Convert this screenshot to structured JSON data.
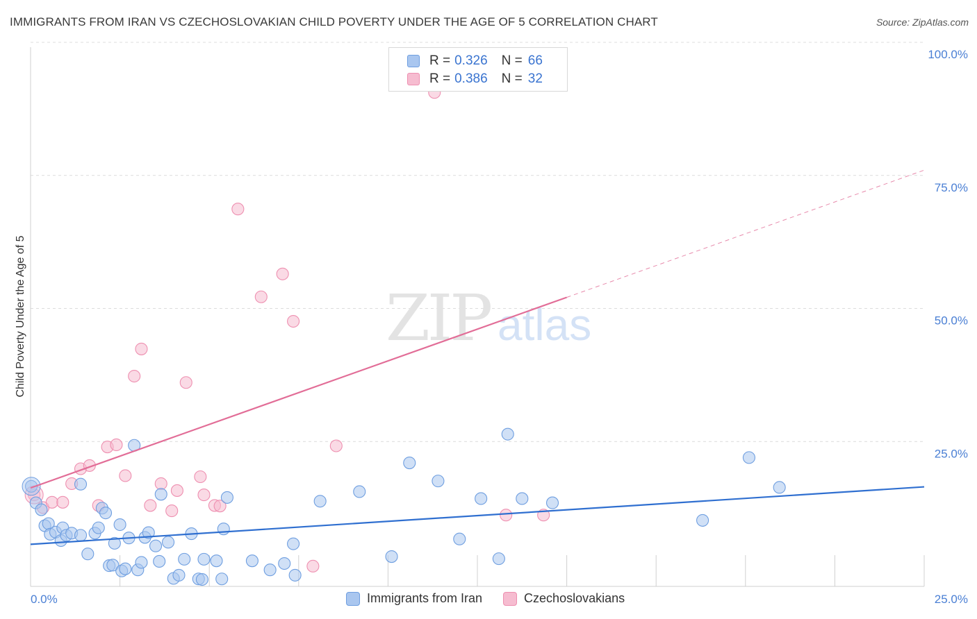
{
  "header": {
    "title": "IMMIGRANTS FROM IRAN VS CZECHOSLOVAKIAN CHILD POVERTY UNDER THE AGE OF 5 CORRELATION CHART",
    "source": "Source: ZipAtlas.com"
  },
  "legend": {
    "rows": [
      {
        "r_label": "R =",
        "r_value": "0.326",
        "n_label": "N =",
        "n_value": "66"
      },
      {
        "r_label": "R =",
        "r_value": "0.386",
        "n_label": "N =",
        "n_value": "32"
      }
    ]
  },
  "bottom_legend": {
    "items": [
      "Immigrants from Iran",
      "Czechoslovakians"
    ]
  },
  "colors": {
    "blue_fill": "#a9c6ef",
    "blue_stroke": "#6e9ee0",
    "blue_line": "#2f6fd0",
    "pink_fill": "#f6bcd0",
    "pink_stroke": "#ee8fb0",
    "pink_line": "#e26d97",
    "grid": "#dcdcdc",
    "tick_text": "#4a7fd4"
  },
  "chart_data": {
    "type": "scatter",
    "title": "IMMIGRANTS FROM IRAN VS CZECHOSLOVAKIAN CHILD POVERTY UNDER THE AGE OF 5 CORRELATION CHART",
    "xlabel": "",
    "ylabel": "Child Poverty Under the Age of 5",
    "xlim": [
      0,
      25
    ],
    "ylim": [
      0,
      100
    ],
    "x_ticks": [
      "0.0%",
      "25.0%"
    ],
    "y_ticks": [
      "25.0%",
      "50.0%",
      "75.0%",
      "100.0%"
    ],
    "y_tick_values": [
      25,
      50,
      75,
      100
    ],
    "grid": true,
    "legend_placement": "top-center",
    "watermark": "ZIPatlas",
    "series": [
      {
        "name": "Immigrants from Iran",
        "R": 0.326,
        "N": 66,
        "trend": {
          "x": [
            0,
            25
          ],
          "y": [
            7.9,
            18.7
          ]
        },
        "points": [
          [
            0.02,
            18.8
          ],
          [
            0.15,
            15.7
          ],
          [
            0.3,
            14.4
          ],
          [
            0.4,
            11.4
          ],
          [
            0.5,
            11.8
          ],
          [
            0.55,
            9.8
          ],
          [
            0.7,
            10.2
          ],
          [
            0.85,
            8.6
          ],
          [
            0.9,
            11.0
          ],
          [
            1.0,
            9.6
          ],
          [
            1.15,
            10.0
          ],
          [
            1.4,
            9.6
          ],
          [
            1.4,
            19.2
          ],
          [
            1.6,
            6.1
          ],
          [
            1.8,
            10.0
          ],
          [
            1.9,
            11.0
          ],
          [
            2.0,
            14.7
          ],
          [
            2.1,
            13.8
          ],
          [
            2.2,
            3.9
          ],
          [
            2.3,
            4.0
          ],
          [
            2.35,
            8.1
          ],
          [
            2.5,
            11.6
          ],
          [
            2.55,
            2.9
          ],
          [
            2.65,
            3.3
          ],
          [
            2.75,
            9.1
          ],
          [
            2.9,
            26.5
          ],
          [
            3.0,
            3.1
          ],
          [
            3.1,
            4.5
          ],
          [
            3.2,
            9.2
          ],
          [
            3.3,
            10.1
          ],
          [
            3.5,
            7.6
          ],
          [
            3.6,
            4.7
          ],
          [
            3.65,
            17.3
          ],
          [
            3.85,
            8.3
          ],
          [
            4.0,
            1.5
          ],
          [
            4.15,
            2.1
          ],
          [
            4.3,
            5.1
          ],
          [
            4.5,
            9.9
          ],
          [
            4.7,
            1.4
          ],
          [
            4.8,
            1.3
          ],
          [
            4.85,
            5.1
          ],
          [
            5.2,
            4.8
          ],
          [
            5.35,
            1.4
          ],
          [
            5.4,
            10.8
          ],
          [
            5.5,
            16.7
          ],
          [
            6.2,
            4.8
          ],
          [
            6.7,
            3.1
          ],
          [
            7.1,
            4.3
          ],
          [
            7.35,
            8.0
          ],
          [
            7.4,
            2.1
          ],
          [
            8.1,
            16.0
          ],
          [
            9.2,
            17.8
          ],
          [
            10.1,
            5.6
          ],
          [
            10.6,
            23.2
          ],
          [
            11.4,
            19.8
          ],
          [
            12.0,
            8.9
          ],
          [
            12.6,
            16.5
          ],
          [
            13.1,
            5.2
          ],
          [
            13.35,
            28.6
          ],
          [
            13.75,
            16.5
          ],
          [
            14.6,
            15.7
          ],
          [
            18.8,
            12.4
          ],
          [
            20.1,
            24.2
          ],
          [
            20.95,
            18.6
          ]
        ]
      },
      {
        "name": "Czechoslovakians",
        "R": 0.386,
        "N": 32,
        "trend": {
          "x": [
            0,
            15
          ],
          "y": [
            18.5,
            54.3
          ]
        },
        "trend_dashed": {
          "x": [
            15,
            25
          ],
          "y": [
            54.3,
            78.2
          ]
        },
        "points": [
          [
            0.1,
            17.2
          ],
          [
            0.35,
            14.8
          ],
          [
            0.6,
            15.8
          ],
          [
            0.9,
            15.8
          ],
          [
            1.15,
            19.3
          ],
          [
            1.4,
            22.1
          ],
          [
            1.65,
            22.7
          ],
          [
            1.9,
            15.2
          ],
          [
            2.15,
            26.2
          ],
          [
            2.4,
            26.6
          ],
          [
            2.65,
            20.8
          ],
          [
            2.9,
            39.5
          ],
          [
            3.1,
            44.6
          ],
          [
            3.35,
            15.2
          ],
          [
            3.65,
            19.3
          ],
          [
            3.95,
            14.2
          ],
          [
            4.1,
            18.0
          ],
          [
            4.35,
            38.3
          ],
          [
            4.75,
            20.6
          ],
          [
            4.85,
            17.2
          ],
          [
            5.15,
            15.2
          ],
          [
            5.3,
            15.1
          ],
          [
            5.8,
            70.9
          ],
          [
            6.45,
            54.4
          ],
          [
            7.05,
            58.7
          ],
          [
            7.35,
            49.8
          ],
          [
            7.9,
            3.8
          ],
          [
            8.55,
            26.4
          ],
          [
            11.3,
            92.8
          ],
          [
            13.3,
            13.4
          ],
          [
            14.35,
            13.4
          ]
        ]
      }
    ]
  }
}
